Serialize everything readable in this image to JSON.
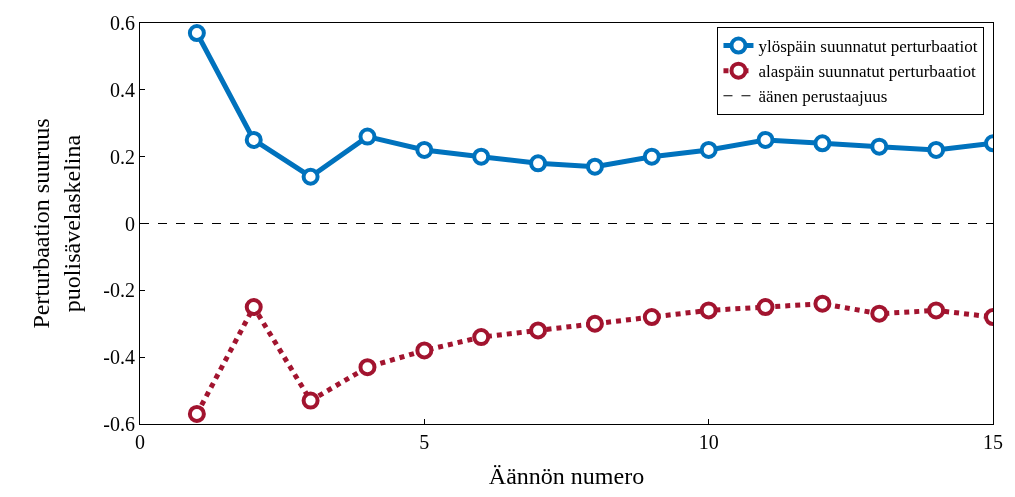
{
  "chart_data": {
    "type": "line",
    "xlabel": "Äännön numero",
    "ylabel": "Perturbaation suuruus\npuolisävelaskelina",
    "x": [
      1,
      2,
      3,
      4,
      5,
      6,
      7,
      8,
      9,
      10,
      11,
      12,
      13,
      14,
      15
    ],
    "series": [
      {
        "name": "ylöspäin suunnatut perturbaatiot",
        "color": "#0072bd",
        "line_style": "solid",
        "values": [
          0.57,
          0.25,
          0.14,
          0.26,
          0.22,
          0.2,
          0.18,
          0.17,
          0.2,
          0.22,
          0.25,
          0.24,
          0.23,
          0.22,
          0.24
        ]
      },
      {
        "name": "alaspäin suunnatut perturbaatiot",
        "color": "#a2142f",
        "line_style": "dotted",
        "values": [
          -0.57,
          -0.25,
          -0.53,
          -0.43,
          -0.38,
          -0.34,
          -0.32,
          -0.3,
          -0.28,
          -0.26,
          -0.25,
          -0.24,
          -0.27,
          -0.26,
          -0.28
        ]
      }
    ],
    "ref_lines": [
      {
        "axis": "y",
        "value": 0,
        "label": "äänen perustaajuus",
        "color": "#000000",
        "line_style": "dashed"
      }
    ],
    "xlim": [
      0,
      15
    ],
    "xticks": [
      0,
      5,
      10,
      15
    ],
    "ylim": [
      -0.6,
      0.6
    ],
    "yticks": [
      -0.6,
      -0.4,
      -0.2,
      0,
      0.2,
      0.4,
      0.6
    ],
    "marker": "circle",
    "legend": "top right"
  }
}
